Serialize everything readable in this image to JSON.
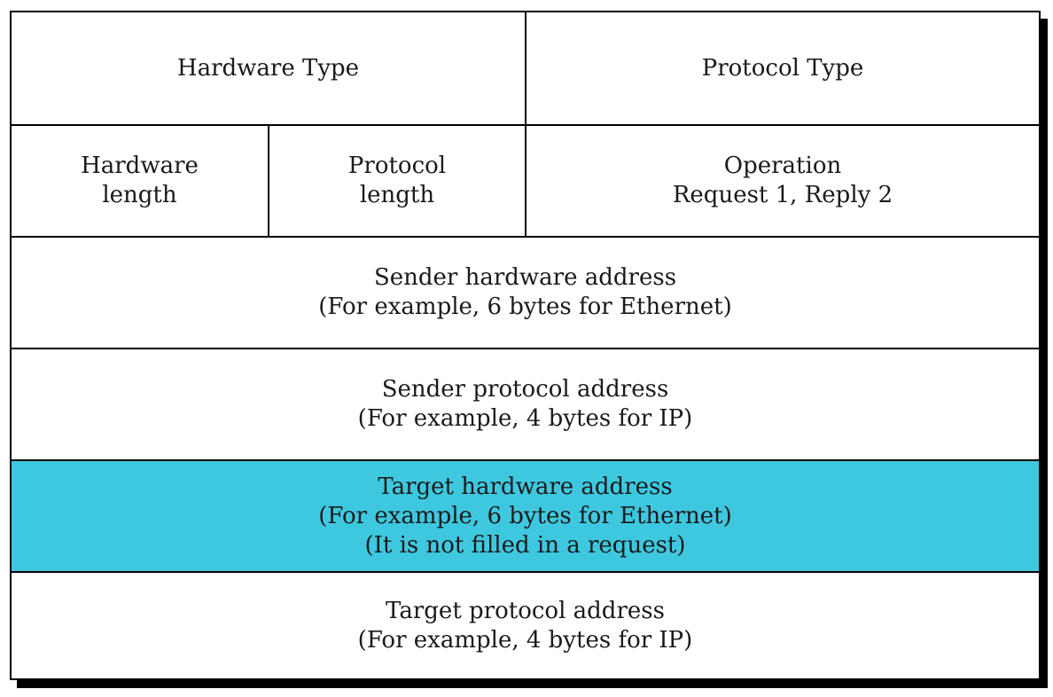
{
  "highlight_color": "#3ec8e0",
  "rows": {
    "row1": {
      "hardware_type": [
        "Hardware Type"
      ],
      "protocol_type": [
        "Protocol Type"
      ]
    },
    "row2": {
      "hardware_length": [
        "Hardware",
        "length"
      ],
      "protocol_length": [
        "Protocol",
        "length"
      ],
      "operation": [
        "Operation",
        "Request 1, Reply 2"
      ]
    },
    "sender_hardware": [
      "Sender hardware address",
      "(For example, 6 bytes for Ethernet)"
    ],
    "sender_protocol": [
      "Sender protocol address",
      "(For example, 4 bytes for IP)"
    ],
    "target_hardware": [
      "Target hardware address",
      "(For example, 6 bytes for Ethernet)",
      "(It is not filled in a request)"
    ],
    "target_protocol": [
      "Target protocol address",
      "(For example, 4 bytes for IP)"
    ]
  }
}
